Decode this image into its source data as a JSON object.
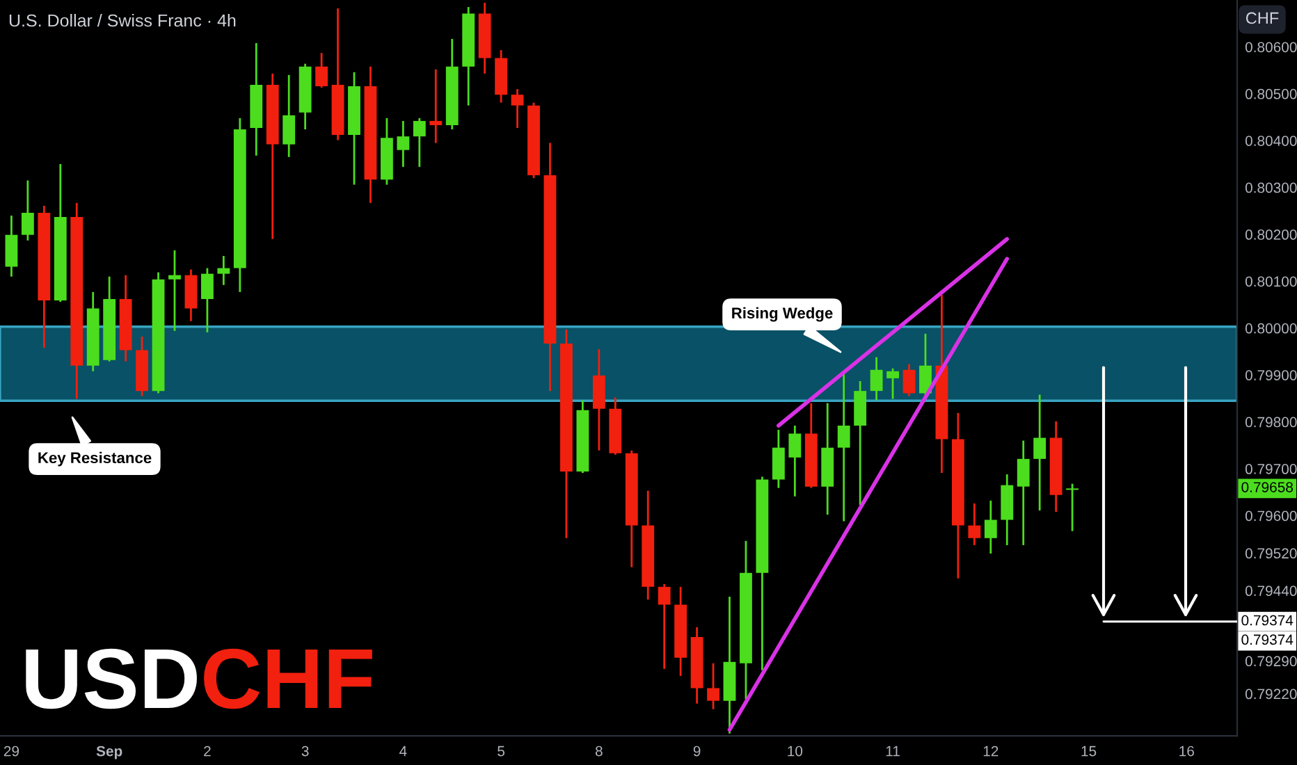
{
  "chart_data": {
    "type": "candlestick",
    "title": "U.S. Dollar / Swiss Franc · 4h",
    "ylabel": "CHF",
    "categories": [
      "29",
      null,
      null,
      null,
      null,
      null,
      "Sep",
      null,
      null,
      null,
      null,
      null,
      "2",
      null,
      null,
      null,
      null,
      null,
      "3",
      null,
      null,
      null,
      null,
      null,
      "4",
      null,
      null,
      null,
      null,
      null,
      "5",
      null,
      null,
      null,
      null,
      null,
      "8",
      null,
      null,
      null,
      null,
      null,
      "9",
      null,
      null,
      null,
      null,
      null,
      "10",
      null,
      null,
      null,
      null,
      null,
      "11",
      null,
      null,
      null,
      null,
      null,
      "12",
      null,
      null,
      null,
      null,
      null,
      "15",
      null,
      null,
      null,
      null,
      null,
      "16",
      null,
      null,
      null
    ],
    "ohlc": [
      [
        0.80131,
        0.8024,
        0.8011,
        0.80199
      ],
      [
        0.80199,
        0.80315,
        0.80187,
        0.80246
      ],
      [
        0.80246,
        0.80261,
        0.79958,
        0.80059
      ],
      [
        0.80059,
        0.8035,
        0.80056,
        0.80237
      ],
      [
        0.80237,
        0.80267,
        0.79849,
        0.7992
      ],
      [
        0.7992,
        0.80077,
        0.79908,
        0.80042
      ],
      [
        0.79932,
        0.8011,
        0.79929,
        0.80062
      ],
      [
        0.80062,
        0.80113,
        0.79929,
        0.79953
      ],
      [
        0.79953,
        0.79982,
        0.79855,
        0.79866
      ],
      [
        0.79866,
        0.80119,
        0.79861,
        0.80104
      ],
      [
        0.80104,
        0.80166,
        0.79994,
        0.80113
      ],
      [
        0.80113,
        0.80125,
        0.80015,
        0.80042
      ],
      [
        0.80062,
        0.80128,
        0.79991,
        0.80116
      ],
      [
        0.80116,
        0.80154,
        0.80092,
        0.80128
      ],
      [
        0.80128,
        0.80448,
        0.80077,
        0.80424
      ],
      [
        0.80427,
        0.80608,
        0.80368,
        0.80519
      ],
      [
        0.80519,
        0.80543,
        0.8019,
        0.80392
      ],
      [
        0.80392,
        0.8054,
        0.80365,
        0.80454
      ],
      [
        0.8046,
        0.80564,
        0.80424,
        0.80558
      ],
      [
        0.80558,
        0.80587,
        0.80513,
        0.80516
      ],
      [
        0.80519,
        0.80682,
        0.80401,
        0.80412
      ],
      [
        0.80412,
        0.80546,
        0.80306,
        0.80516
      ],
      [
        0.80516,
        0.80558,
        0.80267,
        0.80317
      ],
      [
        0.80317,
        0.80448,
        0.80306,
        0.80406
      ],
      [
        0.8038,
        0.80442,
        0.80344,
        0.80409
      ],
      [
        0.80409,
        0.80448,
        0.80344,
        0.80442
      ],
      [
        0.80442,
        0.80552,
        0.80395,
        0.80433
      ],
      [
        0.80433,
        0.80617,
        0.80424,
        0.80558
      ],
      [
        0.80558,
        0.80685,
        0.80475,
        0.80671
      ],
      [
        0.80671,
        0.80694,
        0.80543,
        0.80576
      ],
      [
        0.80576,
        0.80593,
        0.80481,
        0.80498
      ],
      [
        0.80498,
        0.8051,
        0.80427,
        0.80475
      ],
      [
        0.80475,
        0.80481,
        0.8032,
        0.80326
      ],
      [
        0.80326,
        0.80395,
        0.79866,
        0.79967
      ],
      [
        0.79967,
        0.79997,
        0.79552,
        0.79694
      ],
      [
        0.79694,
        0.79846,
        0.79691,
        0.79825
      ],
      [
        0.79899,
        0.79955,
        0.79739,
        0.79828
      ],
      [
        0.79828,
        0.79852,
        0.7973,
        0.79733
      ],
      [
        0.79733,
        0.79739,
        0.7949,
        0.79579
      ],
      [
        0.79579,
        0.79653,
        0.79421,
        0.79448
      ],
      [
        0.79448,
        0.79454,
        0.79273,
        0.7941
      ],
      [
        0.7941,
        0.79448,
        0.79258,
        0.79297
      ],
      [
        0.79341,
        0.79362,
        0.79199,
        0.79232
      ],
      [
        0.79232,
        0.79285,
        0.79187,
        0.79205
      ],
      [
        0.79205,
        0.79427,
        0.79135,
        0.79288
      ],
      [
        0.79285,
        0.79546,
        0.79208,
        0.79478
      ],
      [
        0.79478,
        0.79683,
        0.7927,
        0.79677
      ],
      [
        0.79677,
        0.79783,
        0.79659,
        0.79745
      ],
      [
        0.79724,
        0.79792,
        0.79641,
        0.79775
      ],
      [
        0.79775,
        0.7984,
        0.79659,
        0.79662
      ],
      [
        0.79662,
        0.7984,
        0.79602,
        0.79745
      ],
      [
        0.79745,
        0.79905,
        0.79588,
        0.79792
      ],
      [
        0.79792,
        0.79887,
        0.79623,
        0.79866
      ],
      [
        0.79866,
        0.79938,
        0.79846,
        0.79911
      ],
      [
        0.79893,
        0.79914,
        0.79849,
        0.79908
      ],
      [
        0.79911,
        0.79923,
        0.79855,
        0.79861
      ],
      [
        0.79861,
        0.79988,
        0.79855,
        0.7992
      ],
      [
        0.7992,
        0.80071,
        0.79691,
        0.79763
      ],
      [
        0.79763,
        0.79819,
        0.79466,
        0.79579
      ],
      [
        0.79579,
        0.79626,
        0.79537,
        0.79552
      ],
      [
        0.79552,
        0.79632,
        0.79519,
        0.79591
      ],
      [
        0.79591,
        0.79688,
        0.79537,
        0.79665
      ],
      [
        0.79662,
        0.7976,
        0.79537,
        0.79721
      ],
      [
        0.79721,
        0.79858,
        0.79611,
        0.79766
      ],
      [
        0.79766,
        0.79801,
        0.79608,
        0.79644
      ],
      [
        0.79655,
        0.79668,
        0.79567,
        0.79658
      ],
      null,
      null,
      null,
      null,
      null,
      null,
      null,
      null,
      null,
      null
    ],
    "colors": [
      "#4cdd1e",
      "#4cdd1e",
      "#f2200e",
      "#4cdd1e",
      "#f2200e",
      "#4cdd1e",
      "#4cdd1e",
      "#f2200e",
      "#f2200e",
      "#4cdd1e",
      "#4cdd1e",
      "#f2200e",
      "#4cdd1e",
      "#4cdd1e",
      "#4cdd1e",
      "#4cdd1e",
      "#f2200e",
      "#4cdd1e",
      "#4cdd1e",
      "#f2200e",
      "#f2200e",
      "#4cdd1e",
      "#f2200e",
      "#4cdd1e",
      "#4cdd1e",
      "#4cdd1e",
      "#f2200e",
      "#4cdd1e",
      "#4cdd1e",
      "#f2200e",
      "#f2200e",
      "#f2200e",
      "#f2200e",
      "#f2200e",
      "#f2200e",
      "#4cdd1e",
      "#f2200e",
      "#f2200e",
      "#f2200e",
      "#f2200e",
      "#f2200e",
      "#f2200e",
      "#f2200e",
      "#f2200e",
      "#4cdd1e",
      "#4cdd1e",
      "#4cdd1e",
      "#4cdd1e",
      "#4cdd1e",
      "#f2200e",
      "#4cdd1e",
      "#4cdd1e",
      "#4cdd1e",
      "#4cdd1e",
      "#4cdd1e",
      "#f2200e",
      "#4cdd1e",
      "#f2200e",
      "#f2200e",
      "#f2200e",
      "#4cdd1e",
      "#4cdd1e",
      "#4cdd1e",
      "#4cdd1e",
      "#f2200e",
      "#4cdd1e",
      null,
      null,
      null,
      null,
      null,
      null,
      null,
      null,
      null,
      null
    ],
    "series": [
      {
        "type": "line",
        "color": "#d932e6",
        "values": [
          null,
          null,
          null,
          null,
          null,
          null,
          null,
          null,
          null,
          null,
          null,
          null,
          null,
          null,
          null,
          null,
          null,
          null,
          null,
          null,
          null,
          null,
          null,
          null,
          null,
          null,
          null,
          null,
          null,
          null,
          null,
          null,
          null,
          null,
          null,
          null,
          null,
          null,
          null,
          null,
          null,
          null,
          null,
          null,
          null,
          null,
          null,
          0.79792,
          null,
          null,
          null,
          null,
          null,
          null,
          null,
          null,
          null,
          null,
          null,
          null,
          null,
          0.8019,
          null,
          null,
          null,
          null,
          null,
          null,
          null,
          null,
          null,
          null,
          null,
          null,
          null,
          null
        ]
      },
      {
        "type": "line",
        "color": "#d932e6",
        "values": [
          null,
          null,
          null,
          null,
          null,
          null,
          null,
          null,
          null,
          null,
          null,
          null,
          null,
          null,
          null,
          null,
          null,
          null,
          null,
          null,
          null,
          null,
          null,
          null,
          null,
          null,
          null,
          null,
          null,
          null,
          null,
          null,
          null,
          null,
          null,
          null,
          null,
          null,
          null,
          null,
          null,
          null,
          null,
          null,
          0.79143,
          null,
          null,
          null,
          null,
          null,
          null,
          null,
          null,
          null,
          null,
          null,
          null,
          null,
          null,
          null,
          null,
          0.80148,
          null,
          null,
          null,
          null,
          null,
          null,
          null,
          null,
          null,
          null,
          null,
          null,
          null,
          null
        ]
      }
    ],
    "bands": [
      {
        "axis": "y",
        "from": 0.79845,
        "to": 0.80003,
        "color": "#0b5a72"
      }
    ],
    "ref_lines": [
      {
        "axis": "y",
        "value": 0.79374,
        "label": "0.79374",
        "color": "#ffffff"
      }
    ],
    "annotations": [
      "Rising Wedge",
      "Key Resistance",
      "0.79658",
      "0.79374",
      "USD",
      "CHF"
    ],
    "ylim": [
      0.7913,
      0.807
    ],
    "yticks": [
      {
        "value": 0.806,
        "label": "0.80600"
      },
      {
        "value": 0.805,
        "label": "0.80500"
      },
      {
        "value": 0.804,
        "label": "0.80400"
      },
      {
        "value": 0.803,
        "label": "0.80300"
      },
      {
        "value": 0.802,
        "label": "0.80200"
      },
      {
        "value": 0.801,
        "label": "0.80100"
      },
      {
        "value": 0.8,
        "label": "0.80000"
      },
      {
        "value": 0.799,
        "label": "0.79900"
      },
      {
        "value": 0.798,
        "label": "0.79800"
      },
      {
        "value": 0.797,
        "label": "0.79700"
      },
      {
        "value": 0.796,
        "label": "0.79600"
      },
      {
        "value": 0.7952,
        "label": "0.79520"
      },
      {
        "value": 0.7944,
        "label": "0.79440"
      },
      {
        "value": 0.7929,
        "label": "0.79290"
      },
      {
        "value": 0.7922,
        "label": "0.79220"
      }
    ]
  }
}
